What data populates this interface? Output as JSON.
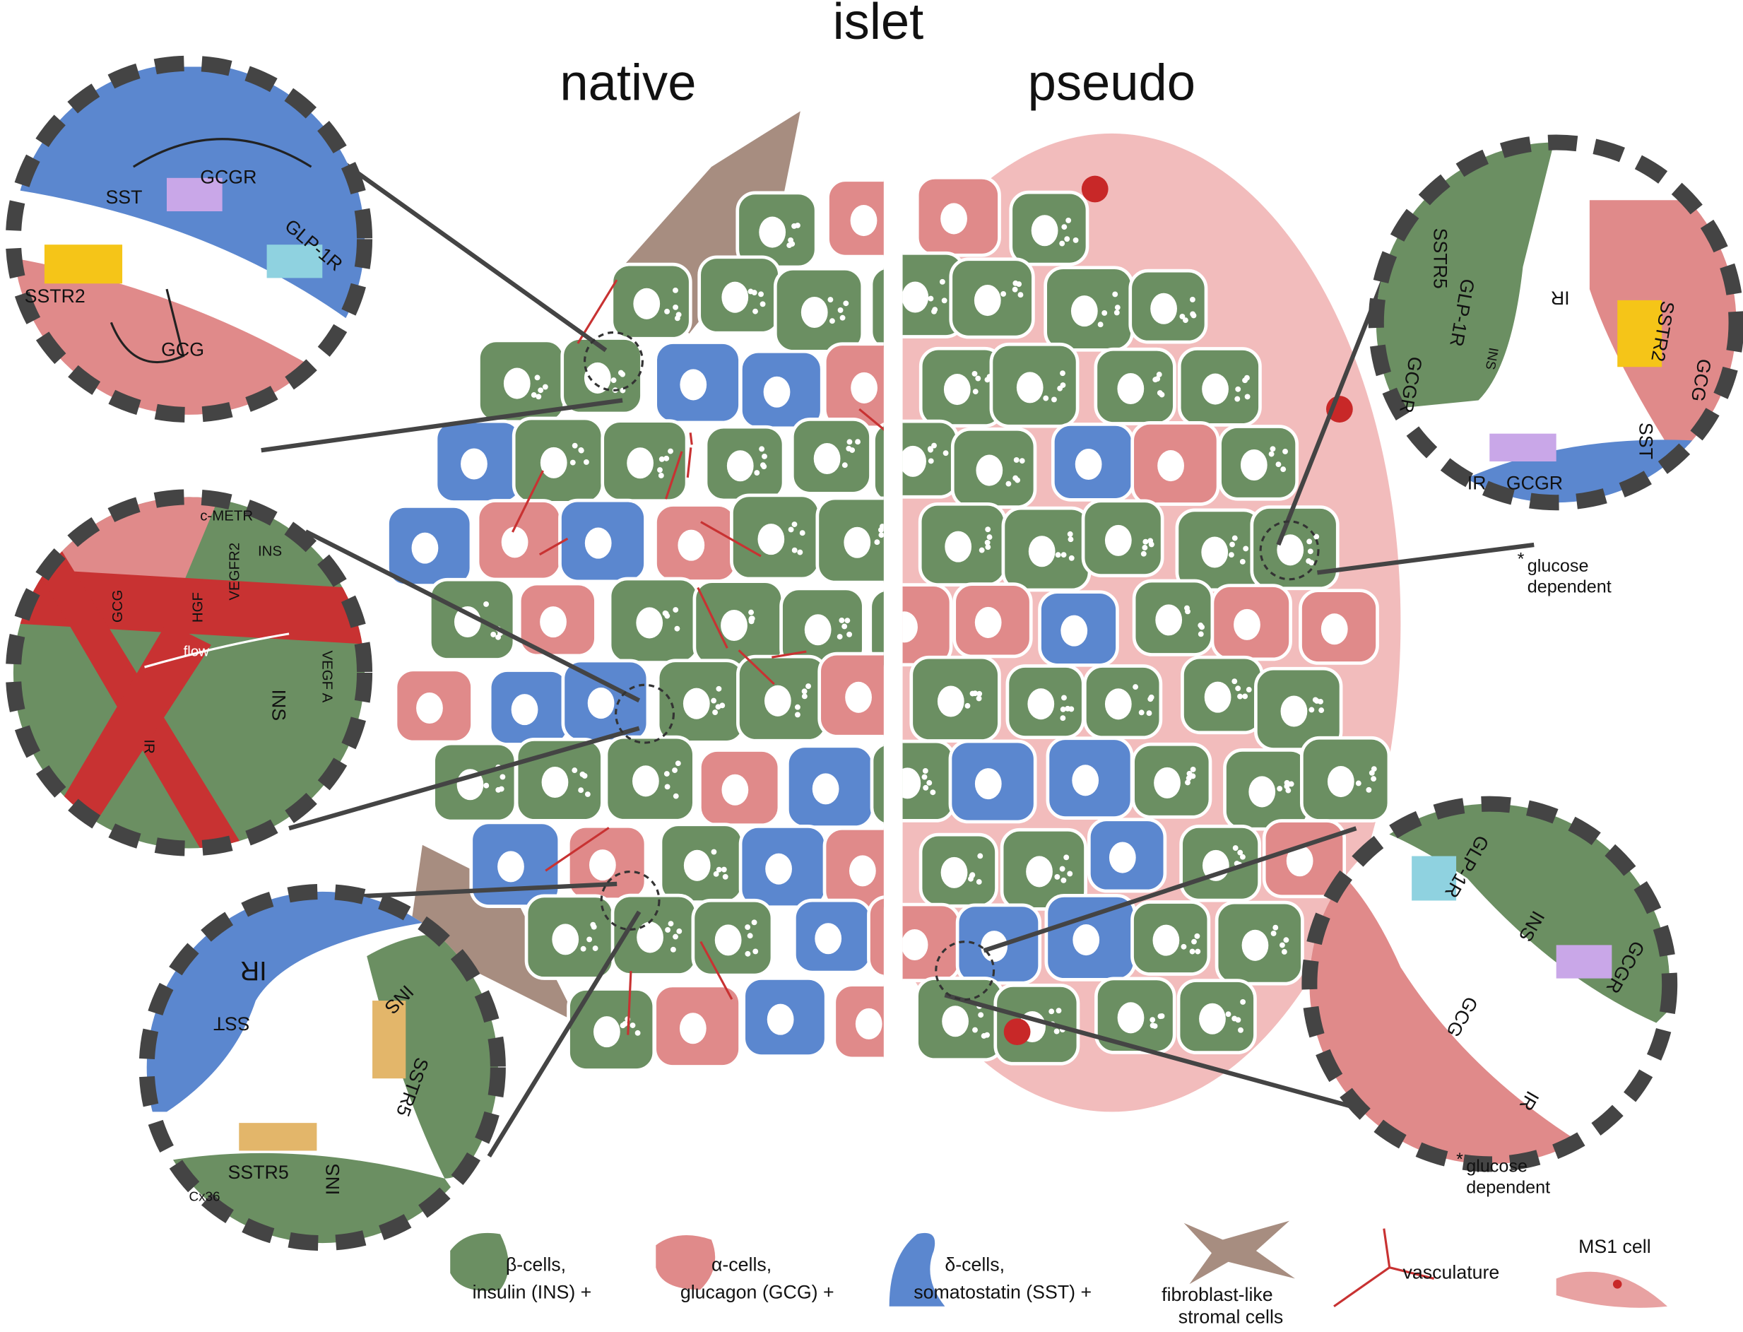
{
  "title": "islet",
  "panels": [
    "native",
    "pseudo"
  ],
  "insets": [
    {
      "labels": [
        "SST",
        "GCGR",
        "GLP-1R",
        "SSTR2",
        "GCG"
      ]
    },
    {
      "labels": [
        "c-METR",
        "INS",
        "VEGFR2",
        "HGF",
        "GCG",
        "flow",
        "INS",
        "VEGF A",
        "IR"
      ]
    },
    {
      "labels": [
        "IR",
        "INS",
        "SST",
        "SSTR5",
        "SSTR5",
        "Cx36",
        "INS"
      ]
    },
    {
      "labels": [
        "SSTR5",
        "GLP-1R",
        "GCGR",
        "INS",
        "IR",
        "SSTR2",
        "GCG",
        "IR",
        "GCGR",
        "SST"
      ],
      "note": {
        "mark": "*",
        "lines": [
          "glucose",
          "dependent"
        ]
      }
    },
    {
      "labels": [
        "GLP-1R",
        "INS",
        "GCGR",
        "GCG",
        "IR"
      ],
      "note": {
        "mark": "*",
        "lines": [
          "glucose",
          "dependent"
        ]
      }
    }
  ],
  "legend": [
    {
      "lines": [
        "β-cells,",
        "insulin (INS) +"
      ]
    },
    {
      "lines": [
        "α-cells,",
        "glucagon (GCG) +"
      ]
    },
    {
      "lines": [
        "δ-cells,",
        "somatostatin (SST) +"
      ]
    },
    {
      "lines": [
        "fibroblast-like",
        "stromal cells"
      ]
    },
    {
      "lines": [
        "vasculature"
      ]
    },
    {
      "lines": [
        "MS1 cell"
      ]
    }
  ]
}
